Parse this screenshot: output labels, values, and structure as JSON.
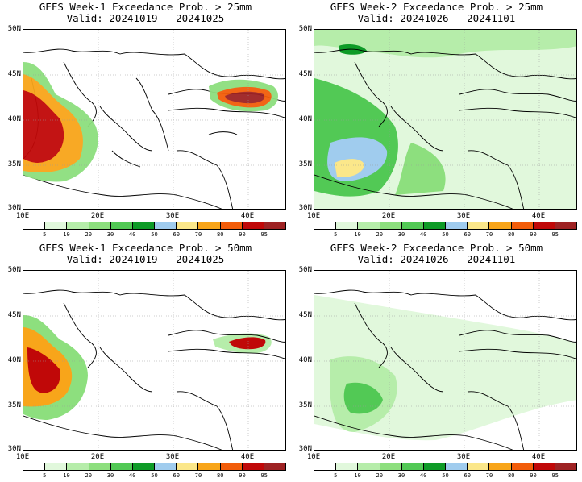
{
  "colorbar": {
    "colors": [
      "#ffffff",
      "#e1f8dc",
      "#b6edaa",
      "#8ddf7e",
      "#52c955",
      "#0e9b27",
      "#a0ccee",
      "#fbe78a",
      "#f8a51a",
      "#f25d0a",
      "#c00808",
      "#9e2223"
    ],
    "labels": [
      "5",
      "10",
      "20",
      "30",
      "40",
      "50",
      "60",
      "70",
      "80",
      "90",
      "95"
    ]
  },
  "axes": {
    "lat_labels": [
      "50N",
      "45N",
      "40N",
      "35N",
      "30N"
    ],
    "lon_labels": [
      "10E",
      "20E",
      "30E",
      "40E"
    ]
  },
  "panels": [
    {
      "title": "GEFS Week-1 Exceedance Prob. > 25mm",
      "valid": "Valid: 20241019 - 20241025"
    },
    {
      "title": "GEFS Week-2 Exceedance Prob. > 25mm",
      "valid": "Valid: 20241026 - 20241101"
    },
    {
      "title": "GEFS Week-1 Exceedance Prob. > 50mm",
      "valid": "Valid: 20241019 - 20241025"
    },
    {
      "title": "GEFS Week-2 Exceedance Prob. > 50mm",
      "valid": "Valid: 20241026 - 20241101"
    }
  ]
}
